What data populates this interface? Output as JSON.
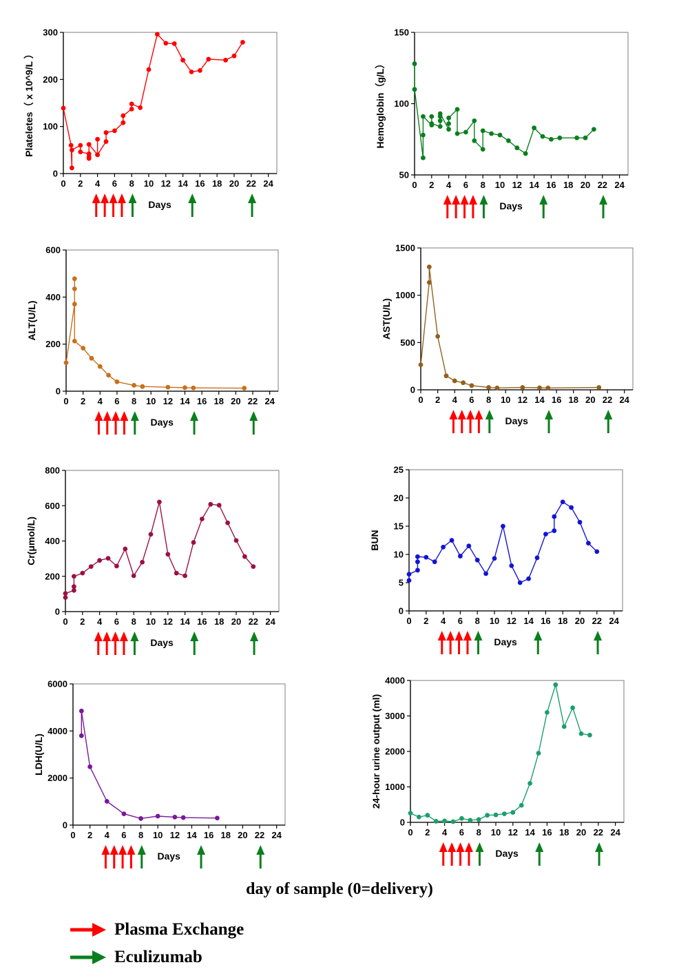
{
  "caption": "day of sample (0=delivery)",
  "legend": [
    {
      "label": "Plasma Exchange",
      "color": "#ff0000",
      "icon": "right-arrow-icon"
    },
    {
      "label": "Eculizumab",
      "color": "#0b7f1e",
      "icon": "right-arrow-icon"
    }
  ],
  "chart_data": [
    {
      "id": "platelets",
      "type": "line",
      "title": "",
      "ylabel": "Plateletes（ x 10^9/L ）",
      "xlabel": "Days",
      "xlim": [
        0,
        25
      ],
      "ylim": [
        0,
        300
      ],
      "yticks": [
        0,
        100,
        200,
        300
      ],
      "xticks": [
        0,
        2,
        4,
        6,
        8,
        10,
        12,
        14,
        16,
        18,
        20,
        22,
        24
      ],
      "color": "#ff0000",
      "x": [
        0,
        0.9,
        1,
        1,
        2,
        2,
        3,
        3,
        3,
        3,
        4,
        4,
        4,
        5,
        5,
        6,
        7,
        7,
        8,
        8,
        9,
        10,
        11,
        12,
        13,
        14,
        15,
        16,
        17,
        19,
        20,
        21
      ],
      "y": [
        139,
        60,
        12,
        50,
        60,
        46,
        42,
        36,
        32,
        62,
        40,
        73,
        40,
        68,
        87,
        91,
        108,
        123,
        137,
        148,
        140,
        221,
        296,
        277,
        276,
        241,
        216,
        219,
        243,
        241,
        250,
        279
      ],
      "plasma_exchange_days": [
        4,
        5,
        6,
        7
      ],
      "eculizumab_days": [
        8,
        15,
        22
      ]
    },
    {
      "id": "hemoglobin",
      "type": "line",
      "title": "",
      "ylabel": "Hemoglobin（g/L）",
      "xlabel": "Days",
      "xlim": [
        0,
        25
      ],
      "ylim": [
        50,
        150
      ],
      "yticks": [
        50,
        100,
        150
      ],
      "xticks": [
        0,
        2,
        4,
        6,
        8,
        10,
        12,
        14,
        16,
        18,
        20,
        22,
        24
      ],
      "color": "#0b7f1e",
      "x": [
        0,
        0,
        0,
        1,
        1,
        1,
        2,
        2,
        2,
        3,
        3,
        3,
        3,
        4,
        4,
        4,
        5,
        5,
        6,
        7,
        7,
        8,
        8,
        9,
        10,
        11,
        12,
        13,
        14,
        15,
        16,
        17,
        19,
        20,
        21
      ],
      "y": [
        110,
        128,
        110,
        62,
        78,
        91,
        85,
        91,
        86,
        84,
        88,
        91,
        93,
        82,
        86,
        90,
        96,
        79,
        80,
        88,
        74,
        68,
        81,
        79,
        78,
        74,
        69,
        65,
        83,
        77,
        75,
        76,
        76,
        76,
        82
      ],
      "plasma_exchange_days": [
        4,
        5,
        6,
        7
      ],
      "eculizumab_days": [
        8,
        15,
        22
      ]
    },
    {
      "id": "alt",
      "type": "line",
      "title": "",
      "ylabel": "ALT(U/L)",
      "xlabel": "Days",
      "xlim": [
        0,
        25
      ],
      "ylim": [
        0,
        600
      ],
      "yticks": [
        0,
        200,
        400,
        600
      ],
      "xticks": [
        0,
        2,
        4,
        6,
        8,
        10,
        12,
        14,
        16,
        18,
        20,
        22,
        24
      ],
      "color": "#c8701c",
      "x": [
        0,
        1,
        1,
        1,
        1,
        2,
        3,
        4,
        5,
        6,
        8,
        9,
        12,
        14,
        15,
        21
      ],
      "y": [
        121,
        370,
        435,
        478,
        213,
        183,
        140,
        105,
        68,
        40,
        25,
        20,
        17,
        15,
        14,
        13
      ],
      "plasma_exchange_days": [
        4,
        5,
        6,
        7
      ],
      "eculizumab_days": [
        8,
        15,
        22
      ]
    },
    {
      "id": "ast",
      "type": "line",
      "title": "",
      "ylabel": "AST(U/L)",
      "xlabel": "Days",
      "xlim": [
        0,
        25
      ],
      "ylim": [
        0,
        1500
      ],
      "yticks": [
        0,
        500,
        1000,
        1500
      ],
      "xticks": [
        0,
        2,
        4,
        6,
        8,
        10,
        12,
        14,
        16,
        18,
        20,
        22,
        24
      ],
      "color": "#93601c",
      "x": [
        0,
        1,
        1,
        2,
        3,
        4,
        5,
        6,
        8,
        9,
        12,
        14,
        15,
        21
      ],
      "y": [
        265,
        1135,
        1300,
        565,
        148,
        95,
        75,
        45,
        25,
        20,
        25,
        22,
        20,
        25
      ],
      "plasma_exchange_days": [
        4,
        5,
        6,
        7
      ],
      "eculizumab_days": [
        8,
        15,
        22
      ]
    },
    {
      "id": "creatinine",
      "type": "line",
      "title": "",
      "ylabel": "Cr(μmol/L)",
      "xlabel": "Days",
      "xlim": [
        0,
        25
      ],
      "ylim": [
        0,
        800
      ],
      "yticks": [
        0,
        200,
        400,
        600,
        800
      ],
      "xticks": [
        0,
        2,
        4,
        6,
        8,
        10,
        12,
        14,
        16,
        18,
        20,
        22,
        24
      ],
      "color": "#9b1145",
      "x": [
        0,
        0,
        1,
        1,
        1,
        2,
        3,
        4,
        5,
        6,
        7,
        8,
        9,
        10,
        11,
        12,
        13,
        14,
        15,
        16,
        17,
        18,
        19,
        20,
        21,
        22
      ],
      "y": [
        80,
        103,
        120,
        142,
        200,
        218,
        255,
        290,
        302,
        258,
        355,
        203,
        280,
        438,
        621,
        325,
        218,
        203,
        392,
        525,
        608,
        603,
        503,
        403,
        312,
        255
      ],
      "plasma_exchange_days": [
        4,
        5,
        6,
        7
      ],
      "eculizumab_days": [
        8,
        15,
        22
      ]
    },
    {
      "id": "bun",
      "type": "line",
      "title": "",
      "ylabel": "BUN",
      "xlabel": "Days",
      "xlim": [
        0,
        25
      ],
      "ylim": [
        0,
        25
      ],
      "yticks": [
        0,
        5,
        10,
        15,
        20,
        25
      ],
      "xticks": [
        0,
        2,
        4,
        6,
        8,
        10,
        12,
        14,
        16,
        18,
        20,
        22,
        24
      ],
      "color": "#1414d6",
      "x": [
        0,
        0,
        1,
        1,
        1,
        2,
        3,
        4,
        5,
        6,
        7,
        8,
        9,
        10,
        11,
        12,
        13,
        14,
        15,
        16,
        17,
        17,
        18,
        19,
        20,
        21,
        22
      ],
      "y": [
        5.4,
        6.5,
        7.2,
        8.7,
        9.6,
        9.5,
        8.7,
        11.3,
        12.5,
        9.7,
        11.5,
        9.0,
        6.6,
        9.3,
        15.0,
        8.0,
        5.0,
        5.7,
        9.4,
        13.6,
        14.2,
        16.7,
        19.3,
        18.3,
        15.7,
        12.0,
        10.5
      ],
      "plasma_exchange_days": [
        4,
        5,
        6,
        7
      ],
      "eculizumab_days": [
        8,
        15,
        22
      ]
    },
    {
      "id": "ldh",
      "type": "line",
      "title": "",
      "ylabel": "LDH(U/L)",
      "xlabel": "Days",
      "xlim": [
        0,
        25
      ],
      "ylim": [
        0,
        6000
      ],
      "yticks": [
        0,
        2000,
        4000,
        6000
      ],
      "xticks": [
        0,
        2,
        4,
        6,
        8,
        10,
        12,
        14,
        16,
        18,
        20,
        22,
        24
      ],
      "color": "#7a189a",
      "x": [
        1,
        1,
        2,
        4,
        6,
        8,
        10,
        12,
        13,
        17
      ],
      "y": [
        3800,
        4850,
        2480,
        1010,
        480,
        280,
        380,
        340,
        320,
        300
      ],
      "plasma_exchange_days": [
        4,
        5,
        6,
        7
      ],
      "eculizumab_days": [
        8,
        15,
        22
      ]
    },
    {
      "id": "urine-output",
      "type": "line",
      "title": "",
      "ylabel": "24-hour urine output (ml)",
      "xlabel": "Days",
      "xlim": [
        0,
        25
      ],
      "ylim": [
        0,
        4000
      ],
      "yticks": [
        0,
        1000,
        2000,
        3000,
        4000
      ],
      "xticks": [
        0,
        2,
        4,
        6,
        8,
        10,
        12,
        14,
        16,
        18,
        20,
        22,
        24
      ],
      "color": "#1d9e6c",
      "x": [
        0,
        1,
        2,
        3,
        4,
        5,
        6,
        7,
        8,
        9,
        10,
        11,
        12,
        13,
        14,
        15,
        16,
        17,
        18,
        19,
        20,
        21
      ],
      "y": [
        260,
        150,
        200,
        30,
        40,
        20,
        110,
        60,
        80,
        200,
        210,
        240,
        280,
        480,
        1100,
        1950,
        3100,
        3880,
        2700,
        3230,
        2500,
        2460
      ],
      "plasma_exchange_days": [
        4,
        5,
        6,
        7
      ],
      "eculizumab_days": [
        8,
        15,
        22
      ]
    }
  ]
}
